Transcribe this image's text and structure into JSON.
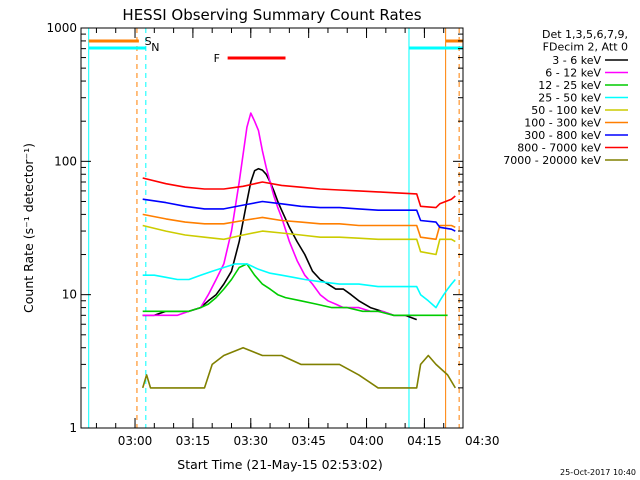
{
  "chart_data": {
    "type": "line",
    "title": "HESSI Observing Summary Count Rates",
    "xlabel": "Start Time (21-May-15 02:53:02)",
    "ylabel": "Count Rate (s⁻¹ detector⁻¹)",
    "ylog": true,
    "ylim": [
      1,
      1000
    ],
    "xlim_min": [
      -7,
      92
    ],
    "x_tick_labels": [
      "03:00",
      "03:15",
      "03:30",
      "03:45",
      "04:00",
      "04:15",
      "04:30"
    ],
    "x_tick_values_min": [
      7,
      22,
      37,
      52,
      67,
      82,
      97
    ],
    "y_tick_labels": [
      "1",
      "10",
      "100",
      "1000"
    ],
    "y_tick_values": [
      1,
      10,
      100,
      1000
    ],
    "legend_header": [
      "Det 1,3,5,6,7,9,",
      "FDecim 2, Att 0"
    ],
    "series": [
      {
        "name": "3 - 6 keV",
        "color": "#000000",
        "x": [
          9,
          12,
          15,
          18,
          21,
          24,
          26,
          28,
          30,
          32,
          34,
          36,
          37,
          38,
          39,
          40,
          41,
          42,
          43,
          44,
          45,
          47,
          49,
          51,
          53,
          55,
          57,
          59,
          61,
          63,
          65,
          68,
          71,
          74,
          77,
          80
        ],
        "y": [
          7,
          7,
          7.5,
          7.5,
          7.5,
          8,
          9,
          10,
          12,
          15,
          25,
          50,
          70,
          85,
          88,
          86,
          80,
          70,
          60,
          50,
          43,
          32,
          25,
          20,
          15,
          13,
          12,
          11,
          11,
          10,
          9,
          8,
          7.5,
          7,
          7,
          6.5
        ]
      },
      {
        "name": "6 - 12 keV",
        "color": "#ff00ff",
        "x": [
          9,
          12,
          15,
          18,
          21,
          24,
          26,
          28,
          30,
          32,
          34,
          36,
          37,
          38,
          39,
          40,
          41,
          42,
          43,
          44,
          45,
          47,
          49,
          51,
          53,
          55,
          57,
          59,
          61,
          63,
          65,
          68,
          71,
          74,
          77,
          80
        ],
        "y": [
          7,
          7,
          7,
          7,
          7.5,
          8,
          10,
          13,
          17,
          30,
          70,
          180,
          230,
          200,
          170,
          120,
          90,
          70,
          55,
          45,
          38,
          25,
          18,
          14,
          12,
          10,
          9,
          8.5,
          8,
          8,
          8,
          7.5,
          7.5,
          7,
          7,
          7
        ]
      },
      {
        "name": "12 - 25 keV",
        "color": "#00cc00",
        "x": [
          9,
          12,
          15,
          18,
          21,
          24,
          26,
          28,
          30,
          32,
          34,
          36,
          38,
          40,
          42,
          44,
          46,
          50,
          54,
          58,
          62,
          66,
          70,
          74,
          78,
          82,
          84,
          86,
          88
        ],
        "y": [
          7.5,
          7.5,
          7.5,
          7.5,
          7.5,
          8,
          8.5,
          9.5,
          11,
          13,
          16,
          17,
          14,
          12,
          11,
          10,
          9.5,
          9,
          8.5,
          8,
          8,
          7.5,
          7.5,
          7,
          7,
          7,
          7,
          7,
          7
        ]
      },
      {
        "name": "25 - 50 keV",
        "color": "#00ffff",
        "x": [
          9,
          12,
          15,
          18,
          21,
          24,
          27,
          30,
          33,
          36,
          39,
          42,
          45,
          48,
          51,
          55,
          60,
          65,
          70,
          75,
          80,
          81,
          83,
          85,
          86,
          87,
          88,
          89,
          90
        ],
        "y": [
          14,
          14,
          13.5,
          13,
          13,
          14,
          15,
          16,
          17,
          17,
          15.5,
          14.5,
          14,
          13.5,
          13,
          12.5,
          12,
          12,
          11.5,
          11.5,
          11.5,
          10,
          9,
          8,
          9,
          10,
          11,
          12,
          13
        ]
      },
      {
        "name": "50 - 100 keV",
        "color": "#cccc00",
        "x": [
          9,
          15,
          20,
          25,
          30,
          35,
          40,
          45,
          50,
          55,
          60,
          65,
          70,
          75,
          80,
          81,
          85,
          86,
          89,
          90
        ],
        "y": [
          33,
          30,
          28,
          27,
          26,
          28,
          30,
          29,
          28,
          27,
          27,
          26.5,
          26,
          26,
          26,
          21,
          20,
          26,
          26,
          25
        ]
      },
      {
        "name": "100 - 300 keV",
        "color": "#ff7f00",
        "x": [
          9,
          15,
          20,
          25,
          30,
          35,
          40,
          45,
          50,
          55,
          60,
          65,
          70,
          75,
          80,
          81,
          85,
          86,
          89,
          90
        ],
        "y": [
          40,
          37,
          35,
          34,
          34,
          36,
          38,
          36,
          35,
          34,
          34,
          33,
          33,
          33,
          33,
          27,
          26,
          33,
          33,
          32
        ]
      },
      {
        "name": "300 - 800 keV",
        "color": "#0000ff",
        "x": [
          9,
          15,
          20,
          25,
          30,
          35,
          40,
          45,
          50,
          55,
          60,
          65,
          70,
          75,
          80,
          81,
          85,
          86,
          89,
          90
        ],
        "y": [
          52,
          49,
          46,
          44,
          44,
          47,
          50,
          48,
          46,
          45,
          45,
          44,
          43,
          43,
          43,
          36,
          35,
          32,
          31,
          30
        ]
      },
      {
        "name": "800 - 7000 keV",
        "color": "#ff0000",
        "x": [
          9,
          15,
          20,
          25,
          30,
          35,
          40,
          45,
          50,
          55,
          60,
          65,
          70,
          75,
          80,
          81,
          85,
          86,
          89,
          90
        ],
        "y": [
          75,
          68,
          64,
          62,
          62,
          65,
          70,
          66,
          64,
          62,
          61,
          60,
          59,
          58,
          57,
          46,
          45,
          48,
          52,
          55
        ]
      },
      {
        "name": "7000 - 20000 keV",
        "color": "#808000",
        "x": [
          9,
          10,
          11,
          13,
          15,
          20,
          25,
          27,
          30,
          35,
          40,
          45,
          50,
          55,
          60,
          65,
          70,
          75,
          79,
          80,
          81,
          83,
          85,
          88,
          90
        ],
        "y": [
          2,
          2.5,
          2,
          2,
          2,
          2,
          2,
          3,
          3.5,
          4,
          3.5,
          3.5,
          3,
          3,
          3,
          2.5,
          2,
          2,
          2,
          2,
          3,
          3.5,
          3,
          2.5,
          2
        ]
      }
    ],
    "annotations": [
      {
        "label": "S",
        "color": "#ff7f00"
      },
      {
        "label": "N",
        "color": "#00ffff"
      },
      {
        "label": "F",
        "color": "#ff0000"
      }
    ],
    "flare_span_min": [
      31,
      46
    ],
    "orange_vlines_min": [
      7.5,
      87.5,
      91
    ],
    "cyan_vlines_min": [
      -5,
      9.8,
      78
    ],
    "s_bar_segments_min": [
      [
        -5,
        8
      ],
      [
        87.5,
        92
      ]
    ],
    "n_bar_segments_min": [
      [
        -5,
        9.8
      ],
      [
        78,
        92
      ]
    ]
  },
  "footer_date": "25-Oct-2017 10:40"
}
